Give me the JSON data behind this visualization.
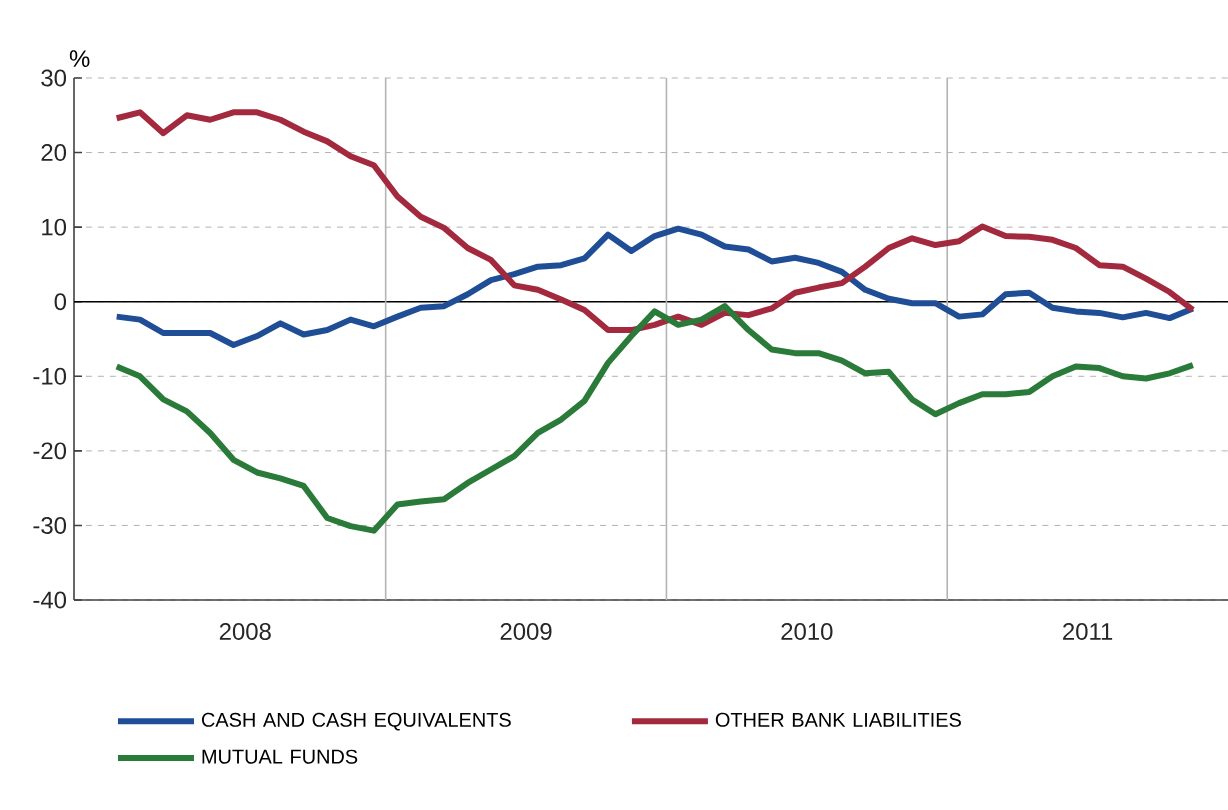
{
  "chart_data": {
    "type": "line",
    "ylabel": "%",
    "x": [
      2008.042,
      2008.125,
      2008.208,
      2008.292,
      2008.375,
      2008.458,
      2008.542,
      2008.625,
      2008.708,
      2008.792,
      2008.875,
      2008.958,
      2009.042,
      2009.125,
      2009.208,
      2009.292,
      2009.375,
      2009.458,
      2009.542,
      2009.625,
      2009.708,
      2009.792,
      2009.875,
      2009.958,
      2010.042,
      2010.125,
      2010.208,
      2010.292,
      2010.375,
      2010.458,
      2010.542,
      2010.625,
      2010.708,
      2010.792,
      2010.875,
      2010.958,
      2011.042,
      2011.125,
      2011.208,
      2011.292,
      2011.375,
      2011.458,
      2011.542,
      2011.625,
      2011.708,
      2011.792,
      2011.875
    ],
    "series": [
      {
        "name": "CASH AND CASH EQUIVALENTS",
        "color": "#1f4e96",
        "values": [
          -2,
          -2.4,
          -4.2,
          -4.2,
          -4.2,
          -5.8,
          -4.6,
          -2.9,
          -4.4,
          -3.8,
          -2.4,
          -3.3,
          -2,
          -0.8,
          -0.6,
          1,
          2.9,
          3.7,
          4.7,
          4.9,
          5.8,
          9,
          6.8,
          8.8,
          9.8,
          9,
          7.4,
          7,
          5.4,
          5.9,
          5.2,
          4,
          1.6,
          0.4,
          -0.2,
          -0.2,
          -2,
          -1.7,
          1,
          1.2,
          -0.8,
          -1.3,
          -1.5,
          -2.1,
          -1.5,
          -2.2,
          -0.9
        ]
      },
      {
        "name": "OTHER BANK LIABILITIES",
        "color": "#a32a3e",
        "values": [
          24.6,
          25.4,
          22.6,
          25,
          24.4,
          25.4,
          25.4,
          24.4,
          22.8,
          21.5,
          19.5,
          18.3,
          14.1,
          11.4,
          9.9,
          7.2,
          5.6,
          2.2,
          1.6,
          0.3,
          -1.1,
          -3.8,
          -3.8,
          -3.1,
          -2,
          -3.1,
          -1.5,
          -1.8,
          -0.9,
          1.2,
          1.9,
          2.5,
          4.7,
          7.2,
          8.5,
          7.6,
          8.1,
          10.1,
          8.8,
          8.7,
          8.3,
          7.2,
          4.9,
          4.7,
          3.1,
          1.3,
          -1.1
        ]
      },
      {
        "name": "MUTUAL FUNDS",
        "color": "#2a7a3a",
        "values": [
          -8.7,
          -10,
          -13.1,
          -14.7,
          -17.6,
          -21.2,
          -22.9,
          -23.7,
          -24.7,
          -29,
          -30.1,
          -30.7,
          -27.2,
          -26.8,
          -26.5,
          -24.3,
          -22.5,
          -20.7,
          -17.6,
          -15.8,
          -13.3,
          -8.2,
          -4.6,
          -1.3,
          -3.1,
          -2.4,
          -0.6,
          -3.8,
          -6.4,
          -6.9,
          -6.9,
          -7.9,
          -9.6,
          -9.4,
          -13.1,
          -15.1,
          -13.6,
          -12.4,
          -12.4,
          -12.1,
          -10,
          -8.7,
          -8.9,
          -10,
          -10.3,
          -9.6,
          -8.5
        ]
      }
    ],
    "xlim": [
      2007.89,
      2012
    ],
    "xticks": [
      {
        "value": 2008.5,
        "label": "2008"
      },
      {
        "value": 2009.5,
        "label": "2009"
      },
      {
        "value": 2010.5,
        "label": "2010"
      },
      {
        "value": 2011.5,
        "label": "2011"
      }
    ],
    "ylim": [
      -40,
      30
    ],
    "yticks": [
      -40,
      -30,
      -20,
      -10,
      0,
      10,
      20,
      30
    ],
    "grid": "y",
    "legend": "bottom",
    "line_style": "solid",
    "ref_lines": [
      {
        "axis": "y",
        "value": 0,
        "color": "#000000"
      },
      {
        "axis": "x",
        "value": 2009,
        "color": "#b4b4b4"
      },
      {
        "axis": "x",
        "value": 2010,
        "color": "#b4b4b4"
      },
      {
        "axis": "x",
        "value": 2011,
        "color": "#b4b4b4"
      }
    ]
  }
}
